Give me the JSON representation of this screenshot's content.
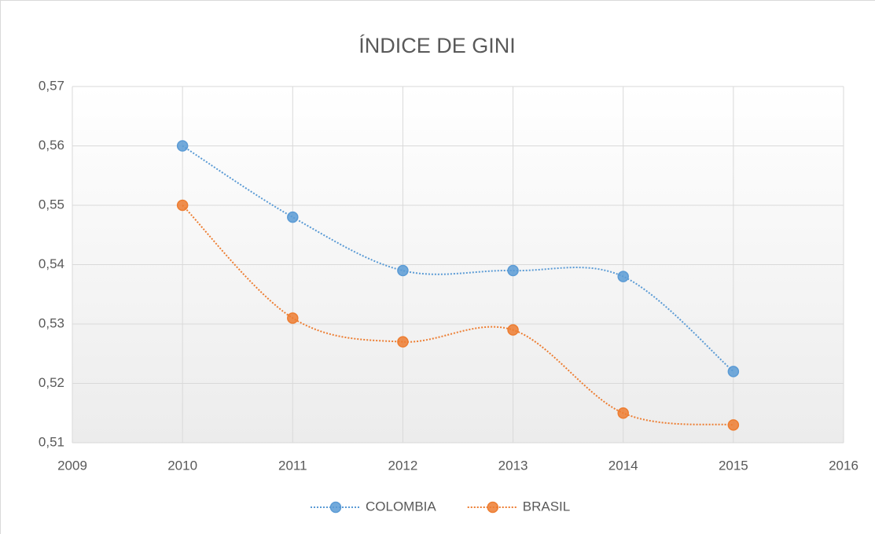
{
  "chart_data": {
    "type": "line",
    "title": "ÍNDICE  DE GINI",
    "x": [
      2010,
      2011,
      2012,
      2013,
      2014,
      2015
    ],
    "series": [
      {
        "name": "COLOMBIA",
        "color": "#5b9bd5",
        "values": [
          0.56,
          0.548,
          0.539,
          0.539,
          0.538,
          0.522
        ]
      },
      {
        "name": "BRASIL",
        "color": "#ed7d31",
        "values": [
          0.55,
          0.531,
          0.527,
          0.529,
          0.515,
          0.513
        ]
      }
    ],
    "xlim": [
      2009,
      2016
    ],
    "xticks": [
      2009,
      2010,
      2011,
      2012,
      2013,
      2014,
      2015,
      2016
    ],
    "ylim": [
      0.51,
      0.57
    ],
    "yticks": [
      {
        "value": 0.51,
        "label": "0,51"
      },
      {
        "value": 0.52,
        "label": "0,52"
      },
      {
        "value": 0.53,
        "label": "0,53"
      },
      {
        "value": 0.54,
        "label": "0,54"
      },
      {
        "value": 0.55,
        "label": "0,55"
      },
      {
        "value": 0.56,
        "label": "0,56"
      },
      {
        "value": 0.57,
        "label": "0,57"
      }
    ],
    "grid": true,
    "smooth": true,
    "legend": "bottom"
  }
}
